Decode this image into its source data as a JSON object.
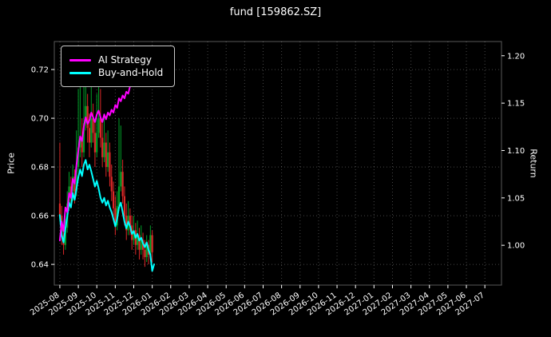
{
  "chart_data": {
    "type": "mixed",
    "title": "fund [159862.SZ]",
    "xlabel": "",
    "ylabel_left": "Price",
    "ylabel_right": "Return",
    "left_ylim": [
      0.6315,
      0.7315
    ],
    "right_ylim": [
      0.958,
      1.215
    ],
    "x_domain": [
      -0.3,
      23.9
    ],
    "x_tick_labels": [
      "2025-08",
      "2025-09",
      "2025-10",
      "2025-11",
      "2025-12",
      "2026-01",
      "2026-02",
      "2026-03",
      "2026-04",
      "2026-05",
      "2026-06",
      "2026-07",
      "2026-08",
      "2026-09",
      "2026-10",
      "2026-11",
      "2026-12",
      "2027-01",
      "2027-02",
      "2027-03",
      "2027-04",
      "2027-05",
      "2027-06",
      "2027-07"
    ],
    "left_tick_values": [
      0.64,
      0.66,
      0.68,
      0.7,
      0.72
    ],
    "left_tick_labels": [
      "0.64",
      "0.66",
      "0.68",
      "0.70",
      "0.72"
    ],
    "right_tick_values": [
      1.0,
      1.05,
      1.1,
      1.15,
      1.2
    ],
    "right_tick_labels": [
      "1.00",
      "1.05",
      "1.10",
      "1.15",
      "1.20"
    ],
    "grid": {
      "on": true,
      "color": "#ffffff",
      "opacity": 0.28,
      "dash": "1,3"
    },
    "background": "#000000",
    "text_color": "#ffffff",
    "legend_position": "upper-left",
    "series": [
      {
        "name": "AI Strategy",
        "axis": "right",
        "color": "#ff00ff",
        "x0": 0.0,
        "dx": 0.1,
        "y": [
          1.005,
          1.025,
          1.015,
          1.04,
          1.035,
          1.055,
          1.05,
          1.07,
          1.065,
          1.085,
          1.1,
          1.115,
          1.11,
          1.125,
          1.135,
          1.128,
          1.132,
          1.14,
          1.135,
          1.13,
          1.138,
          1.142,
          1.135,
          1.13,
          1.138,
          1.133,
          1.14,
          1.137,
          1.143,
          1.14,
          1.148,
          1.145,
          1.155,
          1.152,
          1.158,
          1.155,
          1.162,
          1.16,
          1.168,
          1.172,
          1.175
        ]
      },
      {
        "name": "Buy-and-Hold",
        "axis": "right",
        "color": "#00ffff",
        "x0": 0.0,
        "dx": 0.1,
        "y": [
          1.032,
          1.01,
          1.003,
          1.018,
          1.03,
          1.045,
          1.04,
          1.055,
          1.048,
          1.06,
          1.072,
          1.08,
          1.073,
          1.085,
          1.09,
          1.08,
          1.085,
          1.078,
          1.07,
          1.062,
          1.068,
          1.06,
          1.05,
          1.045,
          1.05,
          1.042,
          1.047,
          1.04,
          1.035,
          1.028,
          1.02,
          1.028,
          1.04,
          1.045,
          1.035,
          1.025,
          1.018,
          1.025,
          1.02,
          1.012,
          1.015,
          1.008,
          1.012,
          1.005,
          1.008,
          1.002,
          0.998,
          1.003,
          0.995,
          0.99,
          0.973,
          0.98
        ]
      }
    ],
    "candles": {
      "axis": "left",
      "up_color": "#00a028",
      "down_color": "#dc2828",
      "ohlc": [
        [
          0.0,
          0.665,
          0.69,
          0.658,
          0.66
        ],
        [
          0.1,
          0.66,
          0.664,
          0.648,
          0.652
        ],
        [
          0.2,
          0.652,
          0.656,
          0.644,
          0.648
        ],
        [
          0.3,
          0.648,
          0.66,
          0.646,
          0.655
        ],
        [
          0.4,
          0.655,
          0.67,
          0.653,
          0.665
        ],
        [
          0.5,
          0.665,
          0.678,
          0.662,
          0.672
        ],
        [
          0.6,
          0.672,
          0.676,
          0.663,
          0.668
        ],
        [
          0.7,
          0.668,
          0.681,
          0.666,
          0.676
        ],
        [
          0.8,
          0.676,
          0.679,
          0.665,
          0.67
        ],
        [
          0.9,
          0.67,
          0.695,
          0.668,
          0.68
        ],
        [
          1.0,
          0.68,
          0.712,
          0.678,
          0.688
        ],
        [
          1.1,
          0.688,
          0.718,
          0.684,
          0.692
        ],
        [
          1.2,
          0.692,
          0.7,
          0.68,
          0.686
        ],
        [
          1.3,
          0.686,
          0.722,
          0.684,
          0.698
        ],
        [
          1.4,
          0.698,
          0.727,
          0.695,
          0.705
        ],
        [
          1.5,
          0.705,
          0.71,
          0.69,
          0.696
        ],
        [
          1.6,
          0.696,
          0.702,
          0.684,
          0.69
        ],
        [
          1.7,
          0.69,
          0.715,
          0.688,
          0.7
        ],
        [
          1.8,
          0.7,
          0.706,
          0.69,
          0.694
        ],
        [
          1.9,
          0.694,
          0.699,
          0.68,
          0.686
        ],
        [
          2.0,
          0.686,
          0.71,
          0.684,
          0.694
        ],
        [
          2.1,
          0.694,
          0.721,
          0.692,
          0.7
        ],
        [
          2.2,
          0.7,
          0.712,
          0.688,
          0.692
        ],
        [
          2.3,
          0.692,
          0.698,
          0.68,
          0.684
        ],
        [
          2.4,
          0.684,
          0.702,
          0.682,
          0.69
        ],
        [
          2.5,
          0.69,
          0.694,
          0.676,
          0.68
        ],
        [
          2.6,
          0.68,
          0.695,
          0.678,
          0.686
        ],
        [
          2.7,
          0.686,
          0.69,
          0.672,
          0.676
        ],
        [
          2.8,
          0.676,
          0.681,
          0.666,
          0.67
        ],
        [
          2.9,
          0.67,
          0.674,
          0.659,
          0.663
        ],
        [
          3.0,
          0.663,
          0.668,
          0.652,
          0.656
        ],
        [
          3.1,
          0.656,
          0.67,
          0.654,
          0.664
        ],
        [
          3.2,
          0.664,
          0.7,
          0.662,
          0.672
        ],
        [
          3.3,
          0.672,
          0.697,
          0.67,
          0.678
        ],
        [
          3.4,
          0.678,
          0.683,
          0.665,
          0.668
        ],
        [
          3.5,
          0.668,
          0.672,
          0.656,
          0.66
        ],
        [
          3.6,
          0.66,
          0.665,
          0.65,
          0.654
        ],
        [
          3.7,
          0.654,
          0.666,
          0.652,
          0.66
        ],
        [
          3.8,
          0.66,
          0.663,
          0.652,
          0.656
        ],
        [
          3.9,
          0.656,
          0.66,
          0.646,
          0.65
        ],
        [
          4.0,
          0.65,
          0.66,
          0.648,
          0.654
        ],
        [
          4.1,
          0.654,
          0.657,
          0.644,
          0.648
        ],
        [
          4.2,
          0.648,
          0.658,
          0.646,
          0.652
        ],
        [
          4.3,
          0.652,
          0.655,
          0.642,
          0.646
        ],
        [
          4.4,
          0.646,
          0.656,
          0.644,
          0.65
        ],
        [
          4.5,
          0.65,
          0.653,
          0.642,
          0.646
        ],
        [
          4.6,
          0.646,
          0.65,
          0.639,
          0.643
        ],
        [
          4.7,
          0.643,
          0.652,
          0.641,
          0.648
        ],
        [
          4.8,
          0.648,
          0.65,
          0.64,
          0.644
        ],
        [
          4.9,
          0.644,
          0.656,
          0.642,
          0.652
        ],
        [
          5.0,
          0.652,
          0.654,
          0.641,
          0.645
        ]
      ]
    }
  }
}
